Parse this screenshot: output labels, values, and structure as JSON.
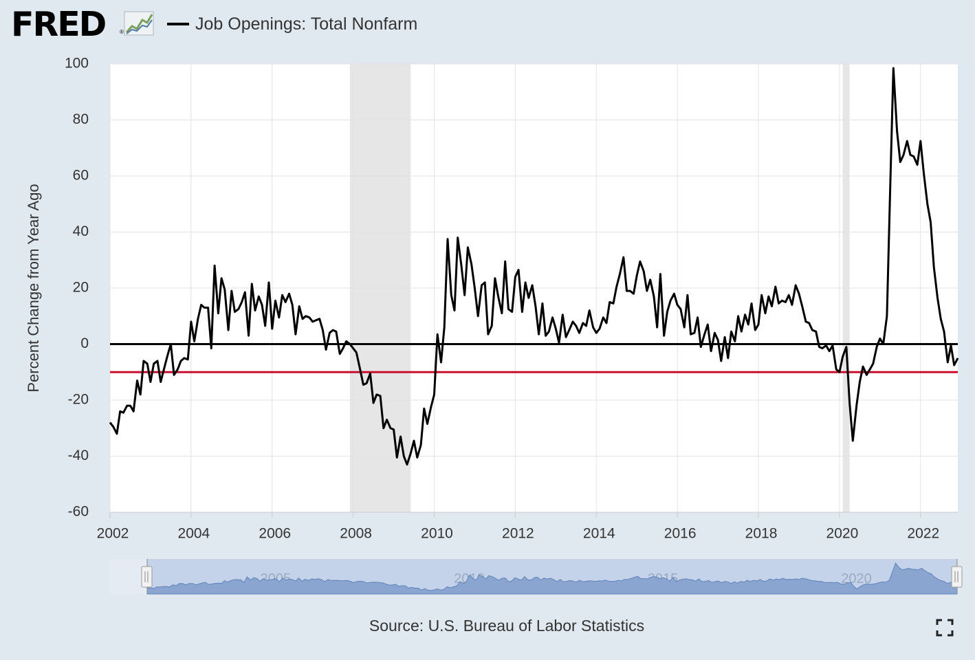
{
  "header": {
    "logo": "FRED",
    "logo_mark": "®",
    "legend_label": "Job Openings: Total Nonfarm"
  },
  "footer": {
    "source": "Source: U.S. Bureau of Labor Statistics"
  },
  "icons": {
    "logo": "fred-chart-icon",
    "fullscreen": "fullscreen-icon"
  },
  "colors": {
    "background": "#e1e9f0",
    "plot_background": "#ffffff",
    "series": "#000000",
    "zero_line": "#000000",
    "reference_line": "#c8102e",
    "recession_shade": "#e6e6e6",
    "navigator_fill": "#8aa6d0",
    "navigator_background": "#c4d2ea"
  },
  "chart_data": {
    "type": "line",
    "title": "Job Openings: Total Nonfarm",
    "xlabel": "",
    "ylabel": "Percent Change from Year Ago",
    "xlim": [
      2002.0,
      2022.92
    ],
    "ylim": [
      -60,
      100
    ],
    "yticks": [
      -60,
      -40,
      -20,
      0,
      20,
      40,
      60,
      80,
      100
    ],
    "xticks": [
      2002,
      2004,
      2006,
      2008,
      2010,
      2012,
      2014,
      2016,
      2018,
      2020,
      2022
    ],
    "navigator_tick_labels": [
      "2005",
      "2010",
      "2015",
      "2020"
    ],
    "grid": true,
    "legend_position": "top-left",
    "recessions": [
      [
        2007.92,
        2009.42
      ],
      [
        2020.08,
        2020.25
      ]
    ],
    "horizontal_lines": [
      {
        "y": 0,
        "color": "#000000"
      },
      {
        "y": -10,
        "color": "#c8102e"
      }
    ],
    "series": [
      {
        "name": "Job Openings: Total Nonfarm",
        "points": [
          [
            2002.0,
            -28
          ],
          [
            2002.08,
            -29.5
          ],
          [
            2002.17,
            -32
          ],
          [
            2002.25,
            -24
          ],
          [
            2002.33,
            -24.5
          ],
          [
            2002.42,
            -22
          ],
          [
            2002.5,
            -22
          ],
          [
            2002.58,
            -24
          ],
          [
            2002.67,
            -13
          ],
          [
            2002.75,
            -18
          ],
          [
            2002.83,
            -6
          ],
          [
            2002.92,
            -7
          ],
          [
            2003.0,
            -13.5
          ],
          [
            2003.08,
            -7
          ],
          [
            2003.17,
            -6
          ],
          [
            2003.25,
            -13.5
          ],
          [
            2003.33,
            -9
          ],
          [
            2003.42,
            -4
          ],
          [
            2003.5,
            0
          ],
          [
            2003.58,
            -11
          ],
          [
            2003.67,
            -9
          ],
          [
            2003.75,
            -6
          ],
          [
            2003.83,
            -5
          ],
          [
            2003.92,
            -5.5
          ],
          [
            2004.0,
            8
          ],
          [
            2004.08,
            1
          ],
          [
            2004.17,
            9
          ],
          [
            2004.25,
            14
          ],
          [
            2004.33,
            13
          ],
          [
            2004.42,
            13
          ],
          [
            2004.5,
            -1.5
          ],
          [
            2004.58,
            28
          ],
          [
            2004.67,
            11
          ],
          [
            2004.75,
            23.5
          ],
          [
            2004.83,
            19.5
          ],
          [
            2004.92,
            5
          ],
          [
            2005.0,
            19
          ],
          [
            2005.08,
            11.5
          ],
          [
            2005.17,
            12.5
          ],
          [
            2005.25,
            15
          ],
          [
            2005.33,
            18.5
          ],
          [
            2005.42,
            3
          ],
          [
            2005.5,
            21.5
          ],
          [
            2005.58,
            12
          ],
          [
            2005.67,
            17
          ],
          [
            2005.75,
            14
          ],
          [
            2005.83,
            6.5
          ],
          [
            2005.92,
            22
          ],
          [
            2006.0,
            5.5
          ],
          [
            2006.08,
            15.5
          ],
          [
            2006.17,
            9.5
          ],
          [
            2006.25,
            17.5
          ],
          [
            2006.33,
            15
          ],
          [
            2006.42,
            18
          ],
          [
            2006.5,
            14
          ],
          [
            2006.58,
            3.5
          ],
          [
            2006.67,
            13.5
          ],
          [
            2006.75,
            9
          ],
          [
            2006.83,
            10
          ],
          [
            2006.92,
            9.5
          ],
          [
            2007.0,
            8
          ],
          [
            2007.08,
            8.5
          ],
          [
            2007.17,
            9
          ],
          [
            2007.25,
            5
          ],
          [
            2007.33,
            -2
          ],
          [
            2007.42,
            4
          ],
          [
            2007.5,
            5
          ],
          [
            2007.58,
            4.5
          ],
          [
            2007.67,
            -3.5
          ],
          [
            2007.75,
            -1.5
          ],
          [
            2007.83,
            1
          ],
          [
            2007.92,
            0
          ],
          [
            2008.0,
            -1.5
          ],
          [
            2008.08,
            -3
          ],
          [
            2008.17,
            -9
          ],
          [
            2008.25,
            -14.5
          ],
          [
            2008.33,
            -14
          ],
          [
            2008.42,
            -10.5
          ],
          [
            2008.5,
            -21
          ],
          [
            2008.58,
            -18
          ],
          [
            2008.67,
            -18.5
          ],
          [
            2008.75,
            -30
          ],
          [
            2008.83,
            -27
          ],
          [
            2008.92,
            -30
          ],
          [
            2009.0,
            -30.5
          ],
          [
            2009.08,
            -40.5
          ],
          [
            2009.17,
            -33
          ],
          [
            2009.25,
            -40
          ],
          [
            2009.33,
            -43
          ],
          [
            2009.42,
            -39
          ],
          [
            2009.5,
            -34.5
          ],
          [
            2009.58,
            -40.5
          ],
          [
            2009.67,
            -36
          ],
          [
            2009.75,
            -23
          ],
          [
            2009.83,
            -28.5
          ],
          [
            2009.92,
            -22.5
          ],
          [
            2010.0,
            -18
          ],
          [
            2010.08,
            3.5
          ],
          [
            2010.17,
            -6.5
          ],
          [
            2010.25,
            6
          ],
          [
            2010.33,
            37.5
          ],
          [
            2010.42,
            17.5
          ],
          [
            2010.5,
            12
          ],
          [
            2010.58,
            38
          ],
          [
            2010.67,
            28
          ],
          [
            2010.75,
            17.5
          ],
          [
            2010.83,
            34.5
          ],
          [
            2010.92,
            28.5
          ],
          [
            2011.0,
            20
          ],
          [
            2011.08,
            10
          ],
          [
            2011.17,
            21
          ],
          [
            2011.25,
            22
          ],
          [
            2011.33,
            3.5
          ],
          [
            2011.42,
            6.5
          ],
          [
            2011.5,
            23.5
          ],
          [
            2011.58,
            17
          ],
          [
            2011.67,
            11
          ],
          [
            2011.75,
            29.5
          ],
          [
            2011.83,
            12.5
          ],
          [
            2011.92,
            11.5
          ],
          [
            2012.0,
            24
          ],
          [
            2012.08,
            26.5
          ],
          [
            2012.17,
            11.5
          ],
          [
            2012.25,
            22
          ],
          [
            2012.33,
            16.5
          ],
          [
            2012.42,
            21
          ],
          [
            2012.5,
            13.5
          ],
          [
            2012.58,
            3.5
          ],
          [
            2012.67,
            14.5
          ],
          [
            2012.75,
            3
          ],
          [
            2012.83,
            4.5
          ],
          [
            2012.92,
            9.5
          ],
          [
            2013.0,
            5.5
          ],
          [
            2013.08,
            0.5
          ],
          [
            2013.17,
            10.5
          ],
          [
            2013.25,
            2.5
          ],
          [
            2013.33,
            5
          ],
          [
            2013.42,
            8
          ],
          [
            2013.5,
            6.5
          ],
          [
            2013.58,
            4
          ],
          [
            2013.67,
            7.5
          ],
          [
            2013.75,
            6.5
          ],
          [
            2013.83,
            12
          ],
          [
            2013.92,
            6
          ],
          [
            2014.0,
            4
          ],
          [
            2014.08,
            5.5
          ],
          [
            2014.17,
            9.5
          ],
          [
            2014.25,
            7.5
          ],
          [
            2014.33,
            15
          ],
          [
            2014.42,
            14.5
          ],
          [
            2014.5,
            20.5
          ],
          [
            2014.58,
            25
          ],
          [
            2014.67,
            31
          ],
          [
            2014.75,
            19
          ],
          [
            2014.83,
            19
          ],
          [
            2014.92,
            18
          ],
          [
            2015.0,
            24.5
          ],
          [
            2015.08,
            29.5
          ],
          [
            2015.17,
            26
          ],
          [
            2015.25,
            19
          ],
          [
            2015.33,
            23
          ],
          [
            2015.42,
            17
          ],
          [
            2015.5,
            6
          ],
          [
            2015.58,
            25
          ],
          [
            2015.67,
            3
          ],
          [
            2015.75,
            11.5
          ],
          [
            2015.83,
            15.5
          ],
          [
            2015.92,
            18
          ],
          [
            2016.0,
            14
          ],
          [
            2016.08,
            12.5
          ],
          [
            2016.17,
            6
          ],
          [
            2016.25,
            17.5
          ],
          [
            2016.33,
            3.5
          ],
          [
            2016.42,
            4
          ],
          [
            2016.5,
            9.5
          ],
          [
            2016.58,
            -1
          ],
          [
            2016.67,
            3.5
          ],
          [
            2016.75,
            7
          ],
          [
            2016.83,
            -2.5
          ],
          [
            2016.92,
            4
          ],
          [
            2017.0,
            1.5
          ],
          [
            2017.08,
            -6
          ],
          [
            2017.17,
            2.5
          ],
          [
            2017.25,
            -5
          ],
          [
            2017.33,
            4.5
          ],
          [
            2017.42,
            1
          ],
          [
            2017.5,
            10
          ],
          [
            2017.58,
            4.5
          ],
          [
            2017.67,
            10.5
          ],
          [
            2017.75,
            7
          ],
          [
            2017.83,
            14.5
          ],
          [
            2017.92,
            5
          ],
          [
            2018.0,
            7
          ],
          [
            2018.08,
            17.5
          ],
          [
            2018.17,
            11
          ],
          [
            2018.25,
            17
          ],
          [
            2018.33,
            13.5
          ],
          [
            2018.42,
            20.5
          ],
          [
            2018.5,
            14.5
          ],
          [
            2018.58,
            15.5
          ],
          [
            2018.67,
            15
          ],
          [
            2018.75,
            17.5
          ],
          [
            2018.83,
            14
          ],
          [
            2018.92,
            21
          ],
          [
            2019.0,
            18
          ],
          [
            2019.08,
            13.5
          ],
          [
            2019.17,
            8
          ],
          [
            2019.25,
            7.5
          ],
          [
            2019.33,
            5
          ],
          [
            2019.42,
            4.5
          ],
          [
            2019.5,
            -1
          ],
          [
            2019.58,
            -1.5
          ],
          [
            2019.67,
            -0.5
          ],
          [
            2019.75,
            -2.5
          ],
          [
            2019.83,
            -0.5
          ],
          [
            2019.92,
            -9
          ],
          [
            2020.0,
            -10
          ],
          [
            2020.08,
            -4.5
          ],
          [
            2020.17,
            -1
          ],
          [
            2020.25,
            -21
          ],
          [
            2020.33,
            -34.5
          ],
          [
            2020.42,
            -22
          ],
          [
            2020.5,
            -13.5
          ],
          [
            2020.58,
            -8
          ],
          [
            2020.67,
            -11
          ],
          [
            2020.75,
            -9
          ],
          [
            2020.83,
            -7
          ],
          [
            2020.92,
            -1
          ],
          [
            2021.0,
            2
          ],
          [
            2021.08,
            0
          ],
          [
            2021.17,
            10
          ],
          [
            2021.25,
            55
          ],
          [
            2021.33,
            98.5
          ],
          [
            2021.42,
            76
          ],
          [
            2021.5,
            65
          ],
          [
            2021.58,
            67.5
          ],
          [
            2021.67,
            72.5
          ],
          [
            2021.75,
            67.5
          ],
          [
            2021.83,
            67
          ],
          [
            2021.92,
            64
          ],
          [
            2022.0,
            72.5
          ],
          [
            2022.08,
            61
          ],
          [
            2022.17,
            50
          ],
          [
            2022.25,
            43.5
          ],
          [
            2022.33,
            27.5
          ],
          [
            2022.42,
            16.5
          ],
          [
            2022.5,
            9
          ],
          [
            2022.58,
            4.5
          ],
          [
            2022.67,
            -6.5
          ],
          [
            2022.75,
            -0.5
          ],
          [
            2022.83,
            -7.5
          ],
          [
            2022.92,
            -5
          ]
        ]
      }
    ]
  }
}
